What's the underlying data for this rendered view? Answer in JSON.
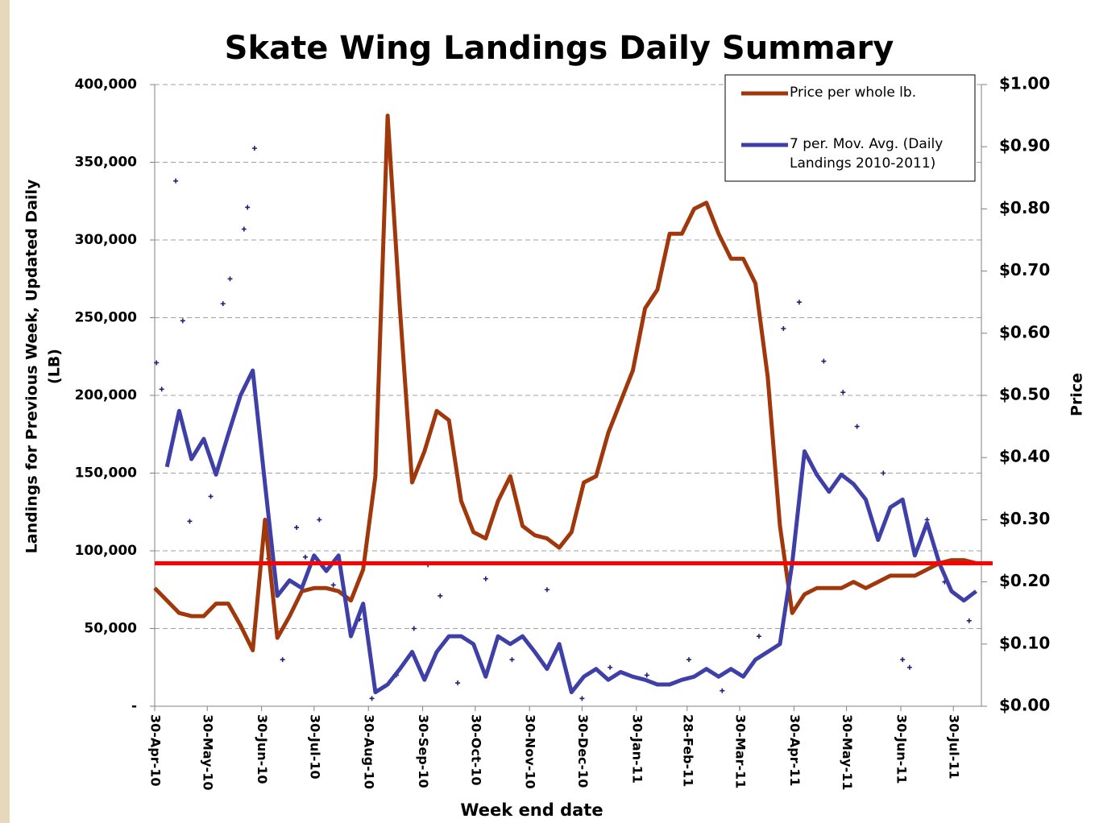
{
  "chart_data": {
    "type": "line",
    "title": "Skate Wing Landings Daily Summary",
    "ylabel_lines": [
      "Landings for Previous Week, Updated Daily",
      "(LB)"
    ],
    "y2label": "Price",
    "xlabel": "Week end date",
    "xlim": [
      "2010-04-30",
      "2011-08-15"
    ],
    "xticks": [
      {
        "value": "2010-04-30",
        "label": "30-Apr-10"
      },
      {
        "value": "2010-05-30",
        "label": "30-May-10"
      },
      {
        "value": "2010-06-30",
        "label": "30-Jun-10"
      },
      {
        "value": "2010-07-30",
        "label": "30-Jul-10"
      },
      {
        "value": "2010-08-30",
        "label": "30-Aug-10"
      },
      {
        "value": "2010-09-30",
        "label": "30-Sep-10"
      },
      {
        "value": "2010-10-30",
        "label": "30-Oct-10"
      },
      {
        "value": "2010-11-30",
        "label": "30-Nov-10"
      },
      {
        "value": "2010-12-30",
        "label": "30-Dec-10"
      },
      {
        "value": "2011-01-30",
        "label": "30-Jan-11"
      },
      {
        "value": "2011-02-28",
        "label": "28-Feb-11"
      },
      {
        "value": "2011-03-30",
        "label": "30-Mar-11"
      },
      {
        "value": "2011-04-30",
        "label": "30-Apr-11"
      },
      {
        "value": "2011-05-30",
        "label": "30-May-11"
      },
      {
        "value": "2011-06-30",
        "label": "30-Jun-11"
      },
      {
        "value": "2011-07-30",
        "label": "30-Jul-11"
      }
    ],
    "ylim": [
      0,
      400000
    ],
    "yticks": [
      {
        "value": 0,
        "label": "-"
      },
      {
        "value": 50000,
        "label": "50,000"
      },
      {
        "value": 100000,
        "label": "100,000"
      },
      {
        "value": 150000,
        "label": "150,000"
      },
      {
        "value": 200000,
        "label": "200,000"
      },
      {
        "value": 250000,
        "label": "250,000"
      },
      {
        "value": 300000,
        "label": "300,000"
      },
      {
        "value": 350000,
        "label": "350,000"
      },
      {
        "value": 400000,
        "label": "400,000"
      }
    ],
    "y2lim": [
      0,
      1
    ],
    "y2ticks": [
      {
        "value": 0,
        "label": "$0.00"
      },
      {
        "value": 0.1,
        "label": "$0.10"
      },
      {
        "value": 0.2,
        "label": "$0.20"
      },
      {
        "value": 0.3,
        "label": "$0.30"
      },
      {
        "value": 0.4,
        "label": "$0.40"
      },
      {
        "value": 0.5,
        "label": "$0.50"
      },
      {
        "value": 0.6,
        "label": "$0.60"
      },
      {
        "value": 0.7,
        "label": "$0.70"
      },
      {
        "value": 0.8,
        "label": "$0.80"
      },
      {
        "value": 0.9,
        "label": "$0.90"
      },
      {
        "value": 1,
        "label": "$1.00"
      }
    ],
    "grid": true,
    "legend": "upper right",
    "reference_line": {
      "value": 92000,
      "color": "#ff0000"
    },
    "x": [
      "2010-04-30",
      "2010-05-07",
      "2010-05-14",
      "2010-05-21",
      "2010-05-28",
      "2010-06-04",
      "2010-06-11",
      "2010-06-18",
      "2010-06-25",
      "2010-07-02",
      "2010-07-09",
      "2010-07-16",
      "2010-07-23",
      "2010-07-30",
      "2010-08-06",
      "2010-08-13",
      "2010-08-20",
      "2010-08-27",
      "2010-09-03",
      "2010-09-10",
      "2010-09-17",
      "2010-09-24",
      "2010-10-01",
      "2010-10-08",
      "2010-10-15",
      "2010-10-22",
      "2010-10-29",
      "2010-11-05",
      "2010-11-12",
      "2010-11-19",
      "2010-11-26",
      "2010-12-03",
      "2010-12-10",
      "2010-12-17",
      "2010-12-24",
      "2010-12-31",
      "2011-01-07",
      "2011-01-14",
      "2011-01-21",
      "2011-01-28",
      "2011-02-04",
      "2011-02-11",
      "2011-02-18",
      "2011-02-25",
      "2011-03-04",
      "2011-03-11",
      "2011-03-18",
      "2011-03-25",
      "2011-04-01",
      "2011-04-08",
      "2011-04-15",
      "2011-04-22",
      "2011-04-29",
      "2011-05-06",
      "2011-05-13",
      "2011-05-20",
      "2011-05-27",
      "2011-06-03",
      "2011-06-10",
      "2011-06-17",
      "2011-06-24",
      "2011-07-01",
      "2011-07-08",
      "2011-07-15",
      "2011-07-22",
      "2011-07-29",
      "2011-08-05",
      "2011-08-12"
    ],
    "series": [
      {
        "name": "Price per whole lb.",
        "color": "#a0380c",
        "axis": "y2",
        "values": [
          0.19,
          0.17,
          0.15,
          0.145,
          0.145,
          0.165,
          0.165,
          0.13,
          0.09,
          0.3,
          0.11,
          0.145,
          0.185,
          0.19,
          0.19,
          0.185,
          0.17,
          0.22,
          0.37,
          0.95,
          0.64,
          0.36,
          0.41,
          0.475,
          0.46,
          0.33,
          0.28,
          0.27,
          0.33,
          0.37,
          0.29,
          0.275,
          0.27,
          0.255,
          0.28,
          0.36,
          0.37,
          0.44,
          0.49,
          0.54,
          0.64,
          0.67,
          0.76,
          0.76,
          0.8,
          0.81,
          0.76,
          0.72,
          0.72,
          0.68,
          0.53,
          0.29,
          0.15,
          0.18,
          0.19,
          0.19,
          0.19,
          0.2,
          0.19,
          0.2,
          0.21,
          0.21,
          0.21,
          0.22,
          0.23,
          0.235,
          0.235,
          0.23
        ]
      },
      {
        "name": "7 per. Mov. Avg. (Daily Landings 2010-2011)",
        "color": "#3f3fa8",
        "values": [
          null,
          154000,
          190000,
          159000,
          172000,
          149000,
          175000,
          200000,
          216000,
          143000,
          71000,
          81000,
          76000,
          97000,
          87000,
          97000,
          45000,
          66000,
          9000,
          14000,
          24000,
          35000,
          17000,
          35000,
          45000,
          45000,
          40000,
          19000,
          45000,
          40000,
          45000,
          35000,
          24000,
          40000,
          9000,
          19000,
          24000,
          17000,
          22000,
          19000,
          17000,
          14000,
          14000,
          17000,
          19000,
          24000,
          19000,
          24000,
          19000,
          30000,
          35000,
          40000,
          92000,
          164000,
          149000,
          138000,
          149000,
          143000,
          133000,
          107000,
          128000,
          133000,
          97000,
          118000,
          92000,
          74000,
          68000,
          74000
        ]
      },
      {
        "type": "scatter",
        "color": "#1f1f7a",
        "x": [
          "2010-05-01",
          "2010-05-04",
          "2010-05-12",
          "2010-05-16",
          "2010-05-20",
          "2010-06-01",
          "2010-06-08",
          "2010-06-12",
          "2010-06-20",
          "2010-06-22",
          "2010-06-26",
          "2010-07-04",
          "2010-07-12",
          "2010-07-20",
          "2010-07-25",
          "2010-08-02",
          "2010-08-10",
          "2010-08-25",
          "2010-09-01",
          "2010-09-15",
          "2010-09-25",
          "2010-10-03",
          "2010-10-10",
          "2010-10-20",
          "2010-11-05",
          "2010-11-20",
          "2010-12-10",
          "2010-12-30",
          "2011-01-15",
          "2011-02-05",
          "2011-03-01",
          "2011-03-20",
          "2011-04-10",
          "2011-04-24",
          "2011-05-03",
          "2011-05-17",
          "2011-05-28",
          "2011-06-05",
          "2011-06-20",
          "2011-07-01",
          "2011-07-05",
          "2011-07-15",
          "2011-07-25",
          "2011-08-08"
        ],
        "values": [
          221000,
          204000,
          338000,
          248000,
          119000,
          135000,
          259000,
          275000,
          307000,
          321000,
          359000,
          95000,
          30000,
          115000,
          96000,
          120000,
          78000,
          56000,
          5000,
          20000,
          50000,
          91000,
          71000,
          15000,
          82000,
          30000,
          75000,
          5000,
          25000,
          20000,
          30000,
          10000,
          45000,
          243000,
          260000,
          222000,
          202000,
          180000,
          150000,
          30000,
          25000,
          120000,
          80000,
          55000
        ]
      }
    ]
  }
}
